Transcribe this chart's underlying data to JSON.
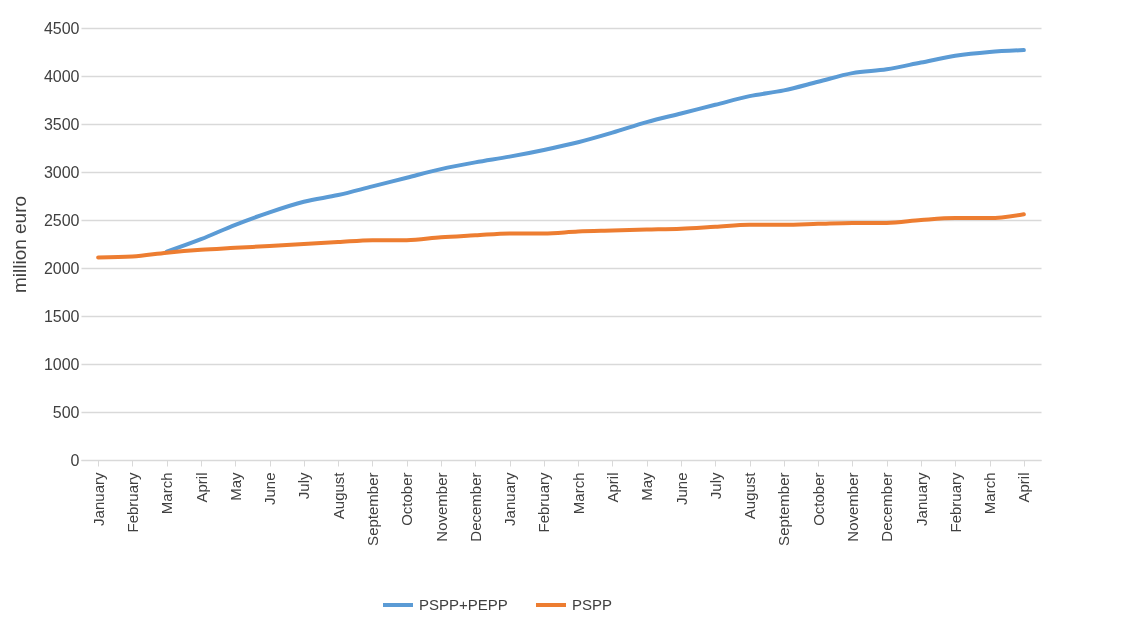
{
  "chart_data": {
    "type": "line",
    "ylabel": "million euro",
    "categories": [
      "January",
      "February",
      "March",
      "April",
      "May",
      "June",
      "July",
      "August",
      "September",
      "October",
      "November",
      "December",
      "January",
      "February",
      "March",
      "April",
      "May",
      "June",
      "July",
      "August",
      "September",
      "October",
      "November",
      "December",
      "January",
      "February",
      "March",
      "April"
    ],
    "series": [
      {
        "name": "PSPP+PEPP",
        "color": "#5b9bd5",
        "values": [
          null,
          null,
          2170,
          2300,
          2450,
          2580,
          2690,
          2760,
          2850,
          2940,
          3030,
          3100,
          3160,
          3230,
          3310,
          3410,
          3520,
          3610,
          3700,
          3790,
          3850,
          3940,
          4030,
          4070,
          4140,
          4210,
          4250,
          4270
        ]
      },
      {
        "name": "PSPP",
        "color": "#ed7d31",
        "values": [
          2110,
          2120,
          2160,
          2190,
          2210,
          2230,
          2250,
          2270,
          2290,
          2290,
          2320,
          2340,
          2360,
          2360,
          2380,
          2390,
          2400,
          2410,
          2430,
          2450,
          2450,
          2460,
          2470,
          2470,
          2500,
          2520,
          2520,
          2560
        ]
      }
    ],
    "ylim": [
      0,
      4500
    ],
    "yticks": [
      0,
      500,
      1000,
      1500,
      2000,
      2500,
      3000,
      3500,
      4000,
      4500
    ],
    "grid": "y",
    "legend": "bottom",
    "marker": "none",
    "line_style": "solid"
  }
}
